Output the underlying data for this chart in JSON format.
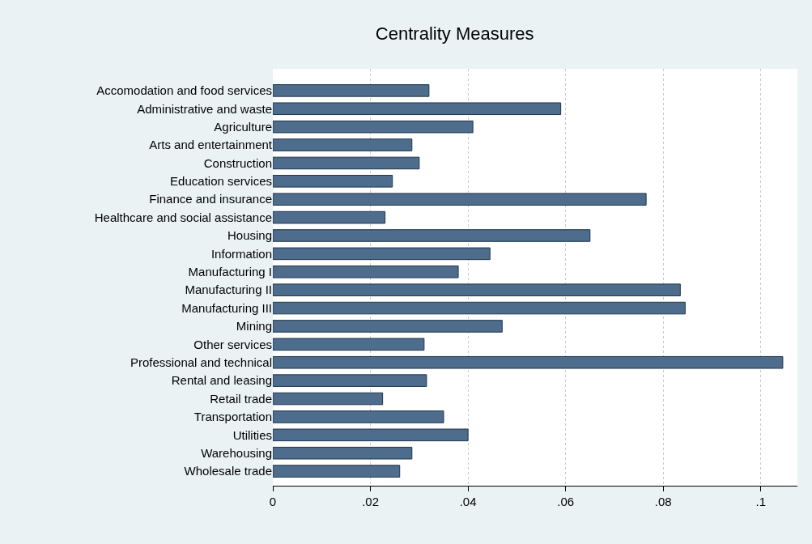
{
  "chart_data": {
    "type": "bar",
    "title": "Centrality Measures",
    "orientation": "horizontal",
    "categories": [
      "Accomodation and food services",
      "Administrative and waste",
      "Agriculture",
      "Arts and entertainment",
      "Construction",
      "Education services",
      "Finance and insurance",
      "Healthcare and social assistance",
      "Housing",
      "Information",
      "Manufacturing I",
      "Manufacturing II",
      "Manufacturing III",
      "Mining",
      "Other services",
      "Professional and technical",
      "Rental and leasing",
      "Retail trade",
      "Transportation",
      "Utilities",
      "Warehousing",
      "Wholesale trade"
    ],
    "values": [
      0.032,
      0.059,
      0.041,
      0.0285,
      0.03,
      0.0245,
      0.0765,
      0.023,
      0.065,
      0.0445,
      0.038,
      0.0835,
      0.0845,
      0.047,
      0.031,
      0.1045,
      0.0315,
      0.0225,
      0.035,
      0.04,
      0.0285,
      0.026
    ],
    "color": "#4e6d8c",
    "xlim": [
      0,
      0.1075
    ],
    "xticks": [
      0,
      {
        "value": 0.02,
        "label": ".02"
      },
      {
        "value": 0.04,
        "label": ".04"
      },
      {
        "value": 0.06,
        "label": ".06"
      },
      {
        "value": 0.08,
        "label": ".08"
      },
      {
        "value": 0.1,
        "label": ".1"
      }
    ],
    "grid": "x"
  }
}
